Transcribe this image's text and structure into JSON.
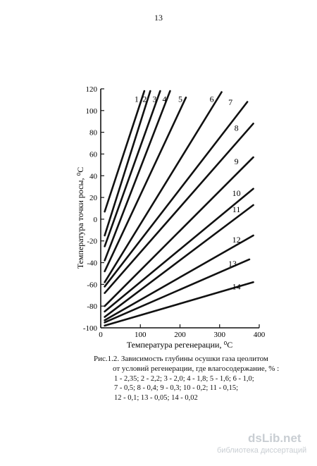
{
  "page": {
    "number": "13"
  },
  "caption": {
    "line1": "Рис.1.2. Зависимость глубины осушки газа цеолитом",
    "line2": "от условий регенерации, где влагосодержание, % :",
    "legend_lines": [
      "1 - 2,35; 2 - 2,2; 3 - 2,0; 4 - 1,8; 5 - 1,6; 6 - 1,0;",
      "7 - 0,5;  8 - 0,4; 9 - 0,3; 10 - 0,2; 11 - 0,15;",
      "12 - 0,1; 13 - 0,05; 14 - 0,02"
    ]
  },
  "watermark": {
    "logo": "dsLib.net",
    "subtitle": "библиотека диссертаций"
  },
  "chart_data": {
    "type": "line",
    "xlabel": "Температура регенерации, ⁰С",
    "ylabel": "Температура точки росы, ⁰С",
    "xlim": [
      0,
      400
    ],
    "ylim": [
      -100,
      120
    ],
    "x_ticks": [
      "0",
      "100",
      "200",
      "300",
      "400"
    ],
    "y_ticks": [
      "-100",
      "-80",
      "-60",
      "-40",
      "-20",
      "0",
      "20",
      "40",
      "60",
      "80",
      "100",
      "120"
    ],
    "grid": false,
    "series": [
      {
        "name": "1",
        "x": [
          10,
          110
        ],
        "y": [
          7,
          118
        ]
      },
      {
        "name": "2",
        "x": [
          10,
          125
        ],
        "y": [
          -15,
          118
        ]
      },
      {
        "name": "3",
        "x": [
          10,
          150
        ],
        "y": [
          -25,
          118
        ]
      },
      {
        "name": "4",
        "x": [
          10,
          175
        ],
        "y": [
          -38,
          118
        ]
      },
      {
        "name": "5",
        "x": [
          10,
          215
        ],
        "y": [
          -48,
          112
        ]
      },
      {
        "name": "6",
        "x": [
          10,
          305
        ],
        "y": [
          -58,
          117
        ]
      },
      {
        "name": "7",
        "x": [
          10,
          370
        ],
        "y": [
          -62,
          108
        ]
      },
      {
        "name": "8",
        "x": [
          10,
          385
        ],
        "y": [
          -68,
          88
        ]
      },
      {
        "name": "9",
        "x": [
          10,
          385
        ],
        "y": [
          -80,
          57
        ]
      },
      {
        "name": "10",
        "x": [
          10,
          385
        ],
        "y": [
          -85,
          28
        ]
      },
      {
        "name": "11",
        "x": [
          10,
          385
        ],
        "y": [
          -90,
          13
        ]
      },
      {
        "name": "12",
        "x": [
          10,
          385
        ],
        "y": [
          -93,
          -15
        ]
      },
      {
        "name": "13",
        "x": [
          10,
          375
        ],
        "y": [
          -95,
          -37
        ]
      },
      {
        "name": "14",
        "x": [
          10,
          385
        ],
        "y": [
          -98,
          -58
        ]
      }
    ]
  }
}
